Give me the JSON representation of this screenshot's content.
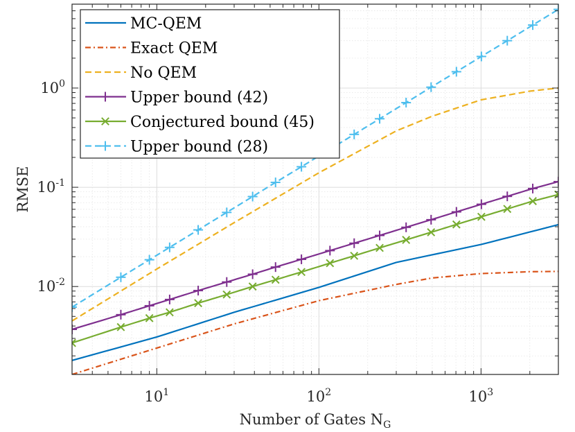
{
  "chart_data": {
    "type": "line",
    "xscale": "log",
    "yscale": "log",
    "xlabel": "Number of Gates N",
    "xlabel_sub": "G",
    "ylabel": "RMSE",
    "xlim": [
      3,
      3000
    ],
    "ylim": [
      0.0013,
      7
    ],
    "grid": true,
    "legend_position": "top-left",
    "x_ticks": [
      {
        "value": 10,
        "base": "10",
        "exp": "1"
      },
      {
        "value": 100,
        "base": "10",
        "exp": "2"
      },
      {
        "value": 1000,
        "base": "10",
        "exp": "3"
      }
    ],
    "y_ticks": [
      {
        "value": 0.01,
        "base": "10",
        "exp": "-2"
      },
      {
        "value": 0.1,
        "base": "10",
        "exp": "-1"
      },
      {
        "value": 1,
        "base": "10",
        "exp": "0"
      }
    ],
    "series": [
      {
        "name": "MC-QEM",
        "color": "#0072BD",
        "dash": "solid",
        "marker": "none",
        "x": [
          3,
          10,
          30,
          100,
          300,
          1000,
          3000
        ],
        "y": [
          0.0018,
          0.0031,
          0.0055,
          0.0098,
          0.0175,
          0.0265,
          0.042
        ]
      },
      {
        "name": "Exact QEM",
        "color": "#D95319",
        "dash": "dashdot",
        "marker": "none",
        "x": [
          3,
          10,
          30,
          100,
          300,
          500,
          1000,
          2000,
          3000
        ],
        "y": [
          0.0013,
          0.0024,
          0.0042,
          0.0072,
          0.0105,
          0.0122,
          0.0135,
          0.0141,
          0.0142
        ]
      },
      {
        "name": "No QEM",
        "color": "#EDB120",
        "dash": "dashed",
        "marker": "none",
        "x": [
          3,
          10,
          30,
          100,
          300,
          500,
          1000,
          2000,
          3000
        ],
        "y": [
          0.0045,
          0.015,
          0.044,
          0.14,
          0.37,
          0.52,
          0.76,
          0.93,
          1.0
        ]
      },
      {
        "name": "Upper bound (42)",
        "color": "#7E2F8E",
        "dash": "solid",
        "marker": "plus",
        "x": [
          3,
          6,
          9,
          12,
          18,
          27,
          39,
          54,
          78,
          117,
          165,
          237,
          345,
          492,
          705,
          1005,
          1452,
          2085,
          3000
        ],
        "y": [
          0.0037,
          0.0052,
          0.0064,
          0.0074,
          0.0091,
          0.0111,
          0.0133,
          0.0157,
          0.0188,
          0.023,
          0.0273,
          0.0327,
          0.0395,
          0.0471,
          0.0565,
          0.0674,
          0.081,
          0.0971,
          0.114
        ]
      },
      {
        "name": "Conjectured bound (45)",
        "color": "#77AC30",
        "dash": "solid",
        "marker": "x",
        "x": [
          3,
          6,
          9,
          12,
          18,
          27,
          39,
          54,
          78,
          117,
          165,
          237,
          345,
          492,
          705,
          1005,
          1452,
          2085,
          3000
        ],
        "y": [
          0.0027,
          0.0039,
          0.0048,
          0.0055,
          0.0068,
          0.0083,
          0.01,
          0.0117,
          0.014,
          0.0172,
          0.0204,
          0.0245,
          0.0295,
          0.0352,
          0.0422,
          0.0504,
          0.0605,
          0.0725,
          0.0845
        ]
      },
      {
        "name": "Upper bound (28)",
        "color": "#4DBEEE",
        "dash": "dashed",
        "marker": "plus",
        "x": [
          3,
          6,
          9,
          12,
          18,
          27,
          39,
          54,
          78,
          117,
          165,
          237,
          345,
          492,
          705,
          1005,
          1452,
          2085,
          3000
        ],
        "y": [
          0.0062,
          0.0124,
          0.0186,
          0.0248,
          0.0372,
          0.0558,
          0.0806,
          0.112,
          0.161,
          0.242,
          0.341,
          0.49,
          0.713,
          1.02,
          1.46,
          2.08,
          3.0,
          4.31,
          6.2
        ]
      }
    ]
  }
}
